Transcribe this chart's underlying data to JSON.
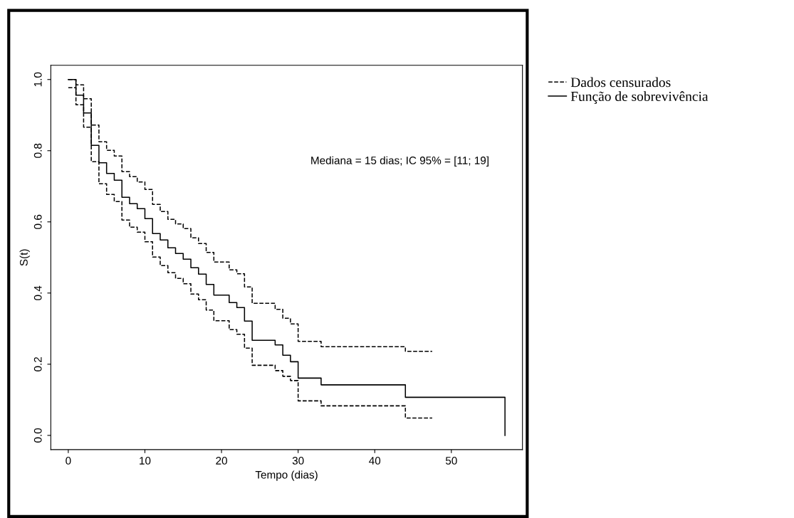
{
  "chart_data": {
    "type": "step",
    "xlabel": "Tempo (dias)",
    "ylabel": "S(t)",
    "xlim": [
      -2.28,
      59.28
    ],
    "ylim": [
      -0.04,
      1.04
    ],
    "xticks": [
      0,
      10,
      20,
      30,
      40,
      50
    ],
    "yticks": [
      {
        "value": 0,
        "label": "0.0"
      },
      0.2,
      0.4,
      0.6,
      0.8,
      {
        "value": 1,
        "label": "1.0"
      }
    ],
    "grid": false,
    "legend": "right",
    "marker": "none",
    "annotations": [
      "Mediana = 15 dias; IC 95% = [11; 19]"
    ],
    "series": [
      {
        "name": "Dados censurados",
        "color": "#000000",
        "line_style": "dashed",
        "x": [
          0,
          1,
          2,
          3,
          4,
          5,
          6,
          7,
          8,
          9,
          10,
          11,
          12,
          13,
          14,
          15,
          16,
          17,
          18,
          19,
          21,
          22,
          23,
          24,
          27,
          28,
          29,
          30,
          33,
          44,
          47.5
        ],
        "values": [
          1.0,
          0.985,
          0.946,
          0.872,
          0.825,
          0.801,
          0.785,
          0.741,
          0.727,
          0.712,
          0.691,
          0.649,
          0.629,
          0.607,
          0.594,
          0.581,
          0.555,
          0.539,
          0.514,
          0.487,
          0.465,
          0.454,
          0.417,
          0.371,
          0.354,
          0.329,
          0.313,
          0.264,
          0.249,
          0.236,
          0.236
        ]
      },
      {
        "name": "Função de sobrevivência",
        "color": "#000000",
        "line_style": "solid",
        "x": [
          0,
          1,
          2,
          3,
          4,
          5,
          6,
          7,
          8,
          9,
          10,
          11,
          12,
          13,
          14,
          15,
          16,
          17,
          18,
          19,
          21,
          22,
          23,
          24,
          27,
          28,
          29,
          30,
          33,
          44,
          57
        ],
        "values": [
          1.0,
          0.956,
          0.906,
          0.815,
          0.766,
          0.736,
          0.717,
          0.669,
          0.651,
          0.637,
          0.609,
          0.567,
          0.549,
          0.527,
          0.511,
          0.495,
          0.471,
          0.453,
          0.424,
          0.394,
          0.373,
          0.359,
          0.321,
          0.267,
          0.254,
          0.225,
          0.207,
          0.161,
          0.142,
          0.107,
          0.0
        ]
      },
      {
        "color": "#000000",
        "line_style": "dashed",
        "x": [
          0,
          1,
          2,
          3,
          4,
          5,
          6,
          7,
          8,
          9,
          10,
          11,
          12,
          13,
          14,
          15,
          16,
          17,
          18,
          19,
          21,
          22,
          23,
          24,
          27,
          28,
          29,
          30,
          33,
          44,
          47.5
        ],
        "values": [
          0.977,
          0.929,
          0.866,
          0.769,
          0.707,
          0.677,
          0.657,
          0.605,
          0.585,
          0.571,
          0.544,
          0.501,
          0.477,
          0.457,
          0.441,
          0.426,
          0.397,
          0.381,
          0.352,
          0.322,
          0.297,
          0.284,
          0.245,
          0.197,
          0.182,
          0.166,
          0.154,
          0.097,
          0.083,
          0.049,
          0.049
        ]
      }
    ]
  }
}
